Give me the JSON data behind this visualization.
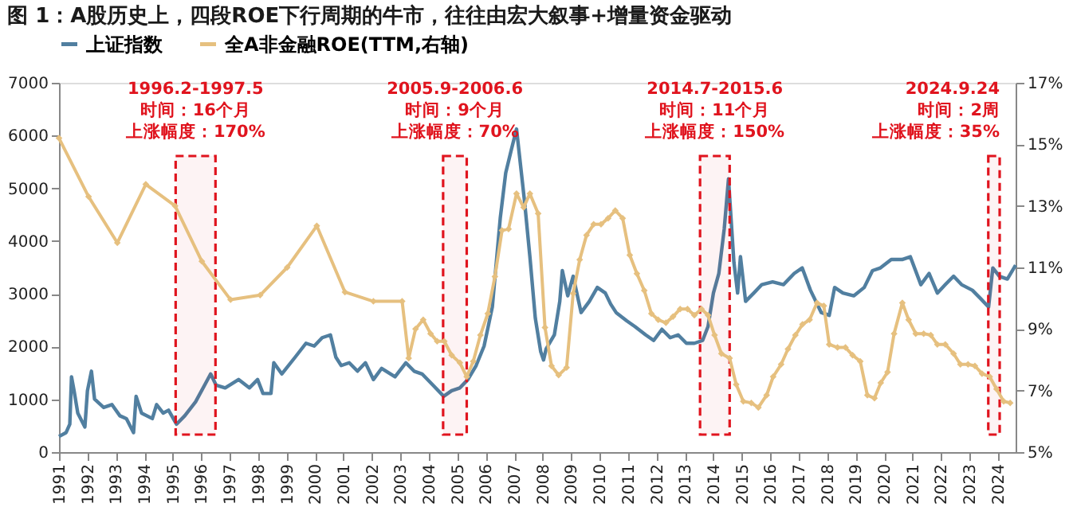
{
  "chart_data": {
    "type": "line",
    "title": "图 1：A股历史上，四段ROE下行周期的牛市，往往由宏大叙事+增量资金驱动",
    "xlim": [
      1991,
      2024.62
    ],
    "xticks": [
      1991,
      1992,
      1993,
      1994,
      1995,
      1996,
      1997,
      1998,
      1999,
      2000,
      2001,
      2002,
      2003,
      2004,
      2005,
      2006,
      2007,
      2008,
      2009,
      2010,
      2011,
      2012,
      2013,
      2014,
      2015,
      2016,
      2017,
      2018,
      2019,
      2020,
      2021,
      2022,
      2023,
      2024
    ],
    "ylim": [
      0,
      7000
    ],
    "yticks": [
      0,
      1000,
      2000,
      3000,
      4000,
      5000,
      6000,
      7000
    ],
    "y2lim": [
      5,
      17
    ],
    "y2ticks": [
      {
        "value": 5,
        "label": "5%"
      },
      {
        "value": 7,
        "label": "7%"
      },
      {
        "value": 9,
        "label": "9%"
      },
      {
        "value": 11,
        "label": "11%"
      },
      {
        "value": 13,
        "label": "13%"
      },
      {
        "value": 15,
        "label": "15%"
      },
      {
        "value": 17,
        "label": "17%"
      }
    ],
    "grid": false,
    "legend": "top",
    "series": [
      {
        "name": "上证指数",
        "color": "#517fa0",
        "x": [
          1991.0,
          1991.25,
          1991.38,
          1991.44,
          1991.53,
          1991.66,
          1991.91,
          1992.0,
          1992.14,
          1992.25,
          1992.57,
          1992.86,
          1993.14,
          1993.37,
          1993.62,
          1993.71,
          1993.9,
          1994.28,
          1994.43,
          1994.66,
          1994.85,
          1995.13,
          1995.42,
          1995.8,
          1996.33,
          1996.52,
          1996.84,
          1997.31,
          1997.69,
          1997.98,
          1998.17,
          1998.45,
          1998.55,
          1998.83,
          1999.3,
          1999.68,
          1999.97,
          2000.25,
          2000.54,
          2000.73,
          2000.92,
          2001.2,
          2001.49,
          2001.77,
          2002.05,
          2002.34,
          2002.81,
          2003.19,
          2003.48,
          2003.76,
          2004.14,
          2004.52,
          2004.8,
          2005.09,
          2005.37,
          2005.66,
          2005.94,
          2006.23,
          2006.51,
          2006.7,
          2006.89,
          2007.08,
          2007.36,
          2007.55,
          2007.74,
          2007.93,
          2008.03,
          2008.12,
          2008.41,
          2008.6,
          2008.69,
          2008.88,
          2009.07,
          2009.35,
          2009.64,
          2009.92,
          2010.2,
          2010.39,
          2010.58,
          2010.96,
          2011.24,
          2011.62,
          2011.9,
          2012.19,
          2012.48,
          2012.76,
          2013.05,
          2013.33,
          2013.62,
          2013.81,
          2014.0,
          2014.19,
          2014.38,
          2014.53,
          2014.63,
          2014.72,
          2014.85,
          2014.95,
          2015.13,
          2015.42,
          2015.7,
          2016.08,
          2016.46,
          2016.84,
          2017.12,
          2017.41,
          2017.79,
          2018.07,
          2018.26,
          2018.55,
          2018.93,
          2019.3,
          2019.59,
          2019.87,
          2020.25,
          2020.63,
          2020.92,
          2021.29,
          2021.58,
          2021.87,
          2022.15,
          2022.44,
          2022.72,
          2023.1,
          2023.39,
          2023.67,
          2023.82,
          2024.05,
          2024.33,
          2024.62
        ],
        "values": [
          296,
          370,
          529,
          1428,
          1164,
          740,
          476,
          1164,
          1534,
          1005,
          846,
          900,
          688,
          635,
          370,
          1058,
          740,
          635,
          900,
          740,
          794,
          529,
          688,
          952,
          1481,
          1270,
          1217,
          1375,
          1217,
          1375,
          1111,
          1111,
          1693,
          1481,
          1799,
          2063,
          2010,
          2169,
          2222,
          1799,
          1640,
          1693,
          1534,
          1693,
          1375,
          1587,
          1428,
          1693,
          1534,
          1481,
          1270,
          1058,
          1164,
          1217,
          1375,
          1640,
          2010,
          2751,
          4444,
          5290,
          5713,
          6124,
          4761,
          3703,
          2539,
          1904,
          1746,
          1957,
          2222,
          2857,
          3439,
          2962,
          3333,
          2645,
          2857,
          3121,
          3015,
          2804,
          2645,
          2486,
          2380,
          2222,
          2116,
          2328,
          2169,
          2222,
          2063,
          2063,
          2116,
          2380,
          3015,
          3386,
          4232,
          5178,
          4338,
          3597,
          3015,
          3703,
          2857,
          3015,
          3174,
          3227,
          3174,
          3386,
          3491,
          3068,
          2645,
          2592,
          3121,
          3015,
          2962,
          3121,
          3439,
          3491,
          3650,
          3650,
          3703,
          3174,
          3386,
          3015,
          3174,
          3333,
          3174,
          3068,
          2910,
          2751,
          3491,
          3333,
          3280,
          3544
        ]
      },
      {
        "name": "全A非金融ROE(TTM,右轴)",
        "color": "#e6c07f",
        "axis": "y2",
        "marker": "diamond",
        "x": [
          1991.0,
          1992.04,
          1993.05,
          1994.05,
          1995.08,
          1996.02,
          1997.03,
          1998.07,
          1999.02,
          2000.06,
          2001.05,
          2002.05,
          2003.06,
          2003.29,
          2003.53,
          2003.8,
          2004.06,
          2004.29,
          2004.54,
          2004.8,
          2005.09,
          2005.33,
          2005.56,
          2005.81,
          2006.07,
          2006.32,
          2006.57,
          2006.8,
          2007.08,
          2007.33,
          2007.55,
          2007.84,
          2008.08,
          2008.31,
          2008.56,
          2008.84,
          2009.07,
          2009.3,
          2009.54,
          2009.79,
          2010.05,
          2010.3,
          2010.55,
          2010.81,
          2011.06,
          2011.31,
          2011.57,
          2011.82,
          2012.06,
          2012.33,
          2012.58,
          2012.83,
          2013.09,
          2013.33,
          2013.58,
          2013.81,
          2014.04,
          2014.28,
          2014.57,
          2014.8,
          2015.05,
          2015.33,
          2015.58,
          2015.87,
          2016.1,
          2016.38,
          2016.62,
          2016.88,
          2017.13,
          2017.38,
          2017.64,
          2017.88,
          2018.07,
          2018.36,
          2018.64,
          2018.89,
          2019.16,
          2019.41,
          2019.66,
          2019.88,
          2020.12,
          2020.35,
          2020.64,
          2020.86,
          2021.11,
          2021.39,
          2021.64,
          2021.87,
          2022.15,
          2022.44,
          2022.68,
          2022.95,
          2023.19,
          2023.44,
          2023.71,
          2023.95,
          2024.2,
          2024.43
        ],
        "values": [
          15.2,
          13.3,
          11.8,
          13.7,
          13.0,
          11.2,
          9.95,
          10.1,
          11.0,
          12.35,
          10.2,
          9.9,
          9.9,
          8.05,
          9.0,
          9.3,
          8.85,
          8.6,
          8.6,
          8.15,
          7.9,
          7.45,
          7.95,
          8.8,
          9.5,
          10.7,
          12.2,
          12.25,
          13.4,
          12.95,
          13.4,
          12.75,
          9.05,
          7.8,
          7.5,
          7.75,
          10.15,
          11.25,
          12.05,
          12.4,
          12.4,
          12.6,
          12.85,
          12.6,
          11.4,
          10.8,
          10.25,
          9.5,
          9.3,
          9.2,
          9.4,
          9.65,
          9.65,
          9.45,
          9.65,
          9.45,
          8.8,
          8.2,
          8.05,
          7.2,
          6.65,
          6.6,
          6.45,
          6.85,
          7.45,
          7.85,
          8.35,
          8.8,
          9.15,
          9.3,
          9.85,
          9.75,
          8.5,
          8.4,
          8.4,
          8.15,
          7.95,
          6.85,
          6.75,
          7.25,
          7.6,
          8.85,
          9.85,
          9.3,
          8.85,
          8.85,
          8.8,
          8.5,
          8.5,
          8.2,
          7.85,
          7.85,
          7.8,
          7.55,
          7.45,
          7.05,
          6.65,
          6.6
        ]
      }
    ],
    "bands": [
      {
        "axis": "x",
        "from": 1995.1,
        "to": 1996.5,
        "label": "1996.2-1997.5",
        "color": "#e0141e"
      },
      {
        "axis": "x",
        "from": 2004.5,
        "to": 2005.33,
        "label": "2005.9-2006.6",
        "color": "#e0141e"
      },
      {
        "axis": "x",
        "from": 2013.53,
        "to": 2014.57,
        "label": "2014.7-2015.6",
        "color": "#e0141e"
      },
      {
        "axis": "x",
        "from": 2023.66,
        "to": 2024.06,
        "label": "2024.9.24",
        "color": "#e0141e"
      }
    ],
    "annotations": [
      "时间：16个月",
      "上涨幅度：170%",
      "时间：9个月",
      "上涨幅度：70%",
      "时间：11个月",
      "上涨幅度：150%",
      "时间：2周",
      "上涨幅度：35%"
    ]
  }
}
